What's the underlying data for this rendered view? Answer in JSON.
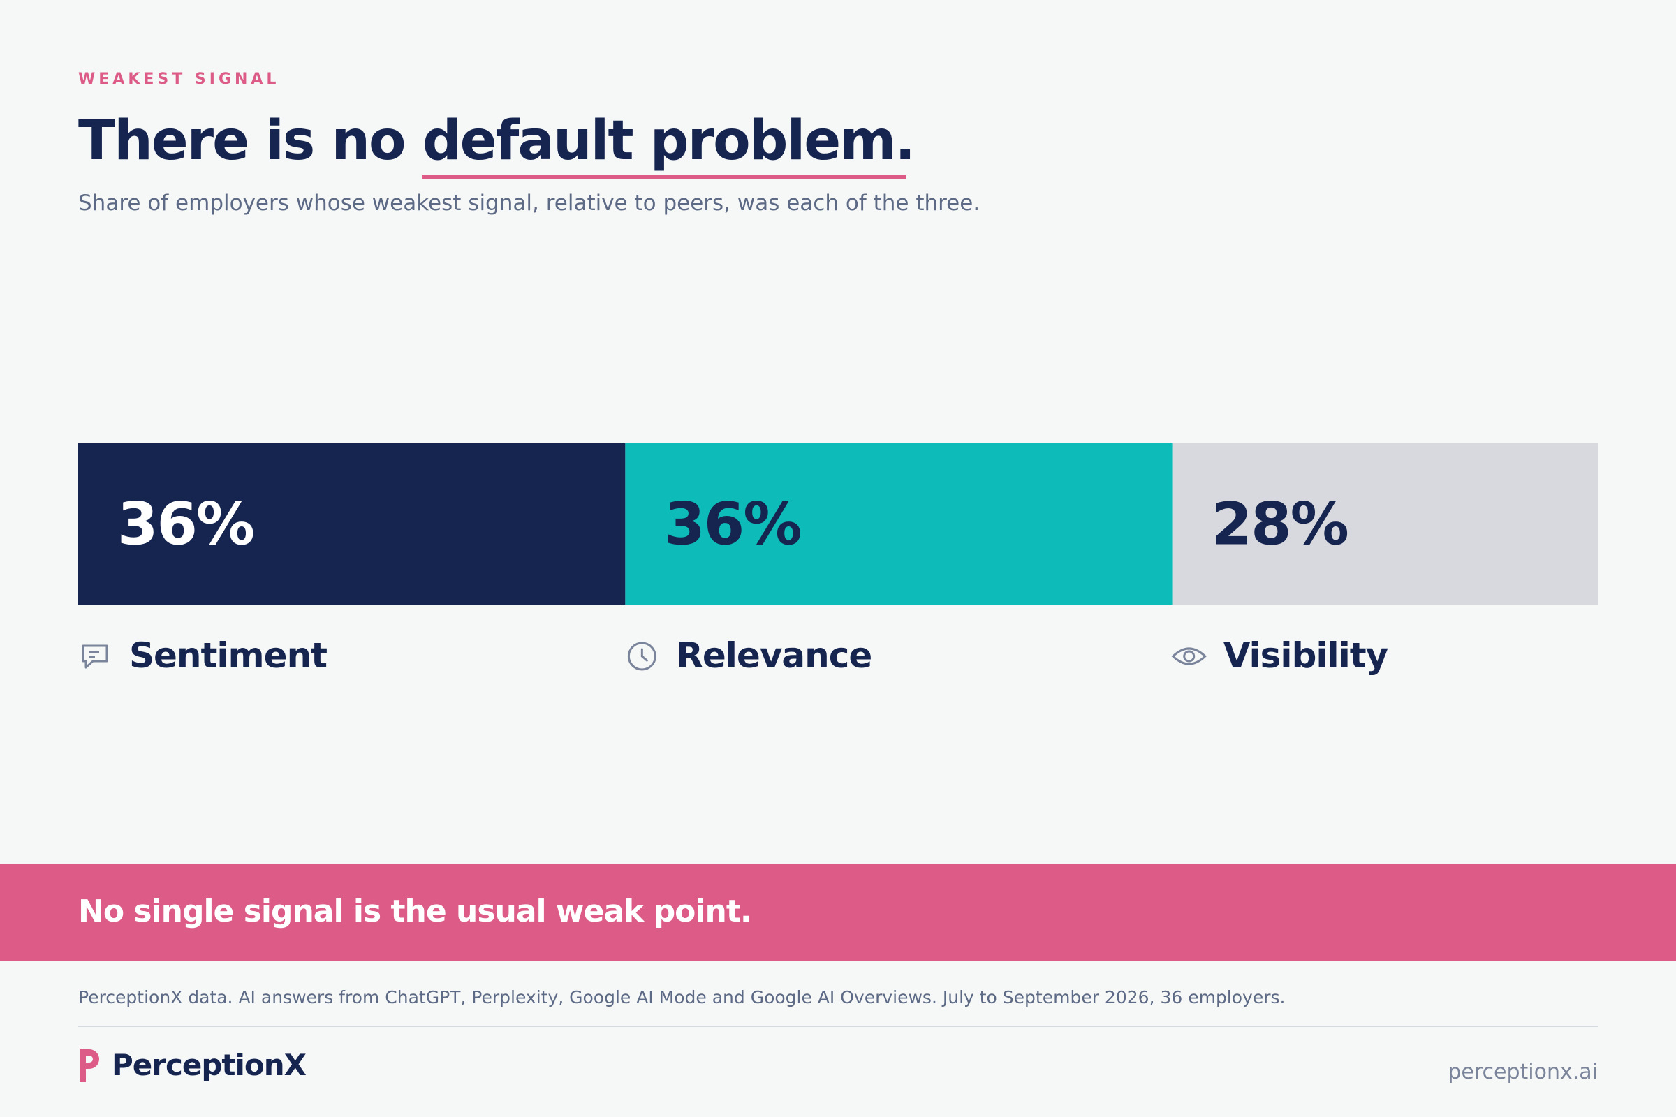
{
  "chart_data": {
    "type": "stacked-bar",
    "eyebrow": "WEAKEST SIGNAL",
    "title": [
      "There is no",
      "default problem."
    ],
    "subtitle": "Share of employers whose weakest signal, relative to peers, was each of the three.",
    "xlim": [
      0,
      100
    ],
    "series": [
      {
        "name": "Sentiment",
        "color": "#16254f",
        "values": [
          36
        ],
        "value_labels": [
          "36%"
        ]
      },
      {
        "name": "Relevance",
        "color": "#0dbcb9",
        "values": [
          36
        ],
        "value_labels": [
          "36%"
        ]
      },
      {
        "name": "Visibility",
        "color": "#d7d9de",
        "values": [
          28
        ],
        "value_labels": [
          "28%"
        ]
      }
    ],
    "takeaway": "No single signal is the usual weak point.",
    "source": "PerceptionX data. AI answers from ChatGPT, Perplexity, Google AI Mode and Google AI Overviews. July to September 2026, 36 employers.",
    "brand": "PerceptionX",
    "url": "perceptionx.ai"
  }
}
